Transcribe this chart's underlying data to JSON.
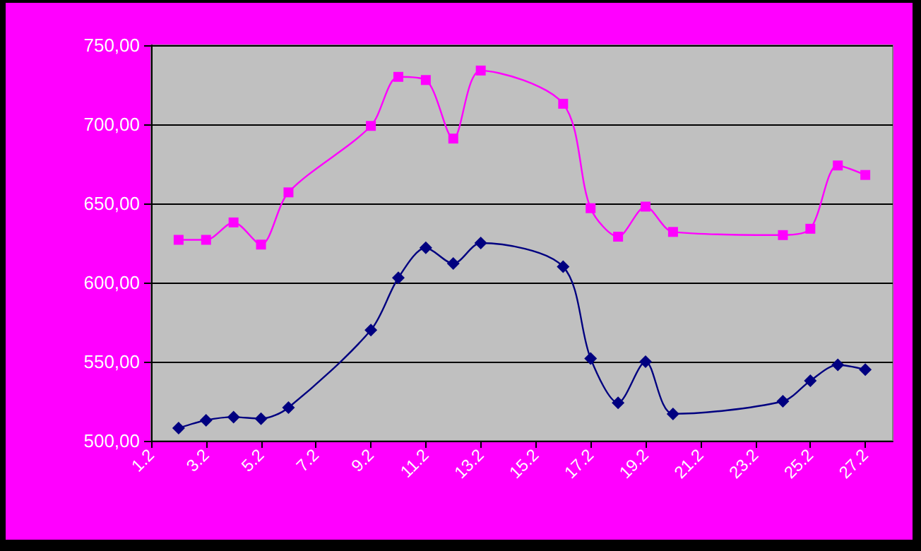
{
  "chart_data": {
    "type": "line",
    "x": [
      "--02-02",
      "--02-03",
      "--02-04",
      "--02-05",
      "--02-06",
      "--02-09",
      "--02-10",
      "--02-11",
      "--02-12",
      "--02-13",
      "--02-16",
      "--02-17",
      "--02-18",
      "--02-19",
      "--02-20",
      "--02-24",
      "--02-25",
      "--02-26",
      "--02-27"
    ],
    "series": [
      {
        "color": "#000080",
        "marker": "diamond",
        "values": [
          508,
          513,
          515,
          514,
          521,
          570,
          603,
          622,
          612,
          625,
          610,
          552,
          524,
          550,
          517,
          525,
          538,
          548,
          545
        ]
      },
      {
        "color": "#ff00ff",
        "marker": "square",
        "values": [
          627,
          627,
          638,
          624,
          657,
          699,
          730,
          728,
          691,
          734,
          713,
          647,
          629,
          648,
          632,
          630,
          634,
          674,
          668
        ]
      }
    ],
    "xlim": [
      "--02-01",
      "--02-28"
    ],
    "xticks": [
      {
        "value": "--02-01",
        "label": "1.2"
      },
      {
        "value": "--02-03",
        "label": "3.2"
      },
      {
        "value": "--02-05",
        "label": "5.2"
      },
      {
        "value": "--02-07",
        "label": "7.2"
      },
      {
        "value": "--02-09",
        "label": "9.2"
      },
      {
        "value": "--02-11",
        "label": "11.2"
      },
      {
        "value": "--02-13",
        "label": "13.2"
      },
      {
        "value": "--02-15",
        "label": "15.2"
      },
      {
        "value": "--02-17",
        "label": "17.2"
      },
      {
        "value": "--02-19",
        "label": "19.2"
      },
      {
        "value": "--02-21",
        "label": "21.2"
      },
      {
        "value": "--02-23",
        "label": "23.2"
      },
      {
        "value": "--02-25",
        "label": "25.2"
      },
      {
        "value": "--02-27",
        "label": "27.2"
      }
    ],
    "ylim": [
      500,
      750
    ],
    "yticks": [
      {
        "value": 500,
        "label": "500,00"
      },
      {
        "value": 550,
        "label": "550,00"
      },
      {
        "value": 600,
        "label": "600,00"
      },
      {
        "value": 650,
        "label": "650,00"
      },
      {
        "value": 700,
        "label": "700,00"
      },
      {
        "value": 750,
        "label": "750,00"
      }
    ],
    "grid": "y",
    "legend": false
  }
}
